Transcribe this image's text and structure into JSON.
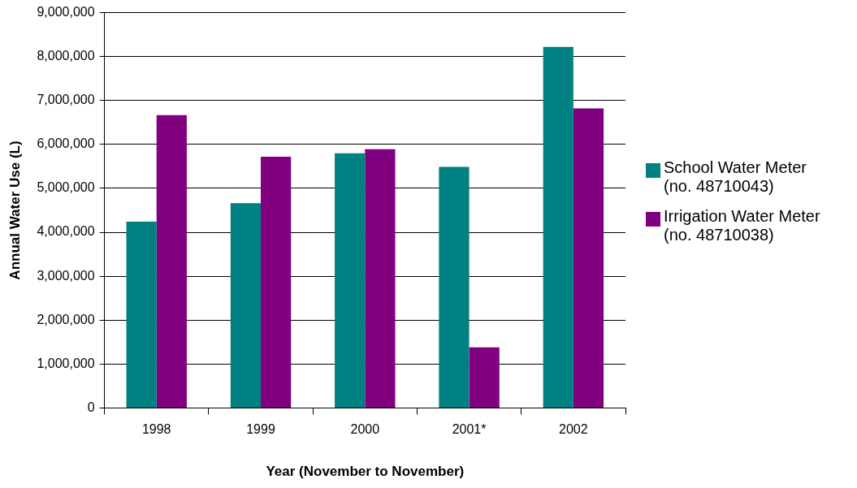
{
  "chart_data": {
    "type": "bar",
    "xlabel": "Year (November to November)",
    "ylabel": "Annual Water Use (L)",
    "categories": [
      "1998",
      "1999",
      "2000",
      "2001*",
      "2002"
    ],
    "series": [
      {
        "name": "School Water Meter (no. 48710043)",
        "color": "#008080",
        "values": [
          4240000,
          4660000,
          5800000,
          5490000,
          8220000
        ]
      },
      {
        "name": "Irrigation Water Meter (no. 48710038)",
        "color": "#800080",
        "values": [
          6670000,
          5720000,
          5890000,
          1380000,
          6820000
        ]
      }
    ],
    "ylim": [
      0,
      9000000
    ],
    "yticks": [
      0,
      {
        "value": 1000000,
        "label": "1,000,000"
      },
      {
        "value": 2000000,
        "label": "2,000,000"
      },
      {
        "value": 3000000,
        "label": "3,000,000"
      },
      {
        "value": 4000000,
        "label": "4,000,000"
      },
      {
        "value": 5000000,
        "label": "5,000,000"
      },
      {
        "value": 6000000,
        "label": "6,000,000"
      },
      {
        "value": 7000000,
        "label": "7,000,000"
      },
      {
        "value": 8000000,
        "label": "8,000,000"
      },
      {
        "value": 9000000,
        "label": "9,000,000"
      }
    ],
    "grid": "y",
    "legend": "right"
  }
}
